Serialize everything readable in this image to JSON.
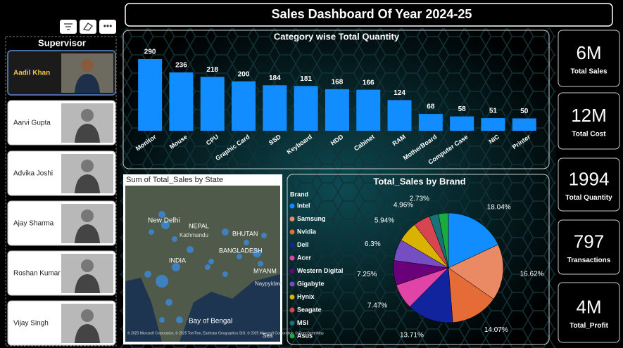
{
  "title": "Sales Dashboard Of Year 2024-25",
  "supervisor": {
    "title": "Supervisor",
    "selected_index": 0,
    "people": [
      {
        "name": "Aadil Khan"
      },
      {
        "name": "Aarvi Gupta"
      },
      {
        "name": "Advika Joshi"
      },
      {
        "name": "Ajay Sharma"
      },
      {
        "name": "Roshan Kumar"
      },
      {
        "name": "Vijay Singh"
      }
    ]
  },
  "kpis": [
    {
      "value": "6M",
      "label": "Total Sales"
    },
    {
      "value": "12M",
      "label": "Total Cost"
    },
    {
      "value": "1994",
      "label": "Total Quantity"
    },
    {
      "value": "797",
      "label": "Transactions"
    },
    {
      "value": "4M",
      "label": "Total_Profit"
    }
  ],
  "chart_data": [
    {
      "type": "bar",
      "title": "Category wise Total Quantity",
      "categories": [
        "Monitor",
        "Mouse",
        "CPU",
        "Graphic Card",
        "SSD",
        "Keyboard",
        "HDD",
        "Cabinet",
        "RAM",
        "MotherBoard",
        "Computer Case",
        "NIC",
        "Printer"
      ],
      "values": [
        290,
        236,
        218,
        200,
        184,
        181,
        168,
        166,
        124,
        68,
        58,
        51,
        50
      ],
      "color": "#118dff"
    },
    {
      "type": "map",
      "title": "Sum of Total_Sales by State",
      "labels": [
        "New Delhi",
        "NEPAL",
        "Kathmandu",
        "BHUTAN",
        "BANGLADESH",
        "INDIA",
        "MYANM",
        "Naypyidaw",
        "Bay of Bengal",
        "Sea"
      ],
      "attribution": [
        "© 2025 Microsoft Corporation, © 2025 TomTom, Earthstar Geographics SIO, © 2025 Microsoft Corporation, © OpenStreetMap"
      ]
    },
    {
      "type": "pie",
      "title": "Total_Sales by Brand",
      "legend_title": "Brand",
      "categories": [
        "Intel",
        "Samsung",
        "Nvidia",
        "Dell",
        "Acer",
        "Western Digital",
        "Gigabyte",
        "Hynix",
        "Seagate",
        "MSI",
        "Asus"
      ],
      "values": [
        18.04,
        16.62,
        14.07,
        13.71,
        7.47,
        7.25,
        6.3,
        5.94,
        4.96,
        2.73,
        2.91
      ],
      "value_labels": [
        "18.04%",
        "16.62%",
        "14.07%",
        "13.71%",
        "7.47%",
        "7.25%",
        "6.3%",
        "5.94%",
        "4.96%",
        "2.73%",
        null
      ],
      "colors": [
        "#118dff",
        "#ea8a65",
        "#e66c37",
        "#12239e",
        "#e044a7",
        "#6b007b",
        "#744ec2",
        "#d9b300",
        "#d64550",
        "#197278",
        "#1aab40"
      ]
    }
  ]
}
